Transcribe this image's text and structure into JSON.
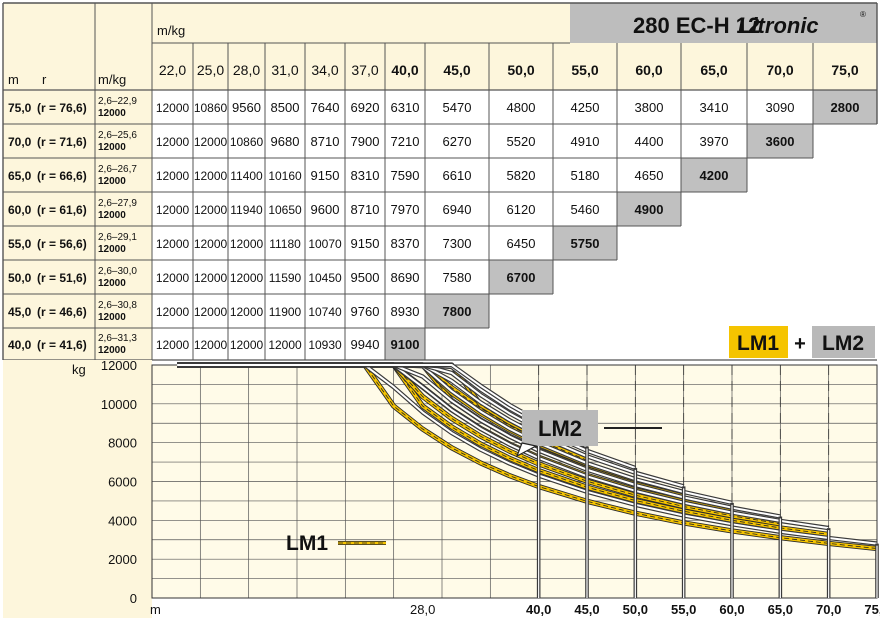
{
  "header": {
    "model": "280 EC-H 12",
    "brand": "Litronic",
    "registered_mark": "®",
    "unit_top": "m/kg",
    "unit_col": "m/kg",
    "label_m": "m",
    "label_r": "r"
  },
  "legend": {
    "lm1": "LM1",
    "plus": "+",
    "lm2": "LM2",
    "lm1_color": "#f5c400",
    "lm2_color": "#b9b9b9",
    "lm2_curve_color": "#3a3a3a"
  },
  "table": {
    "radii": [
      "22,0",
      "25,0",
      "28,0",
      "31,0",
      "34,0",
      "37,0",
      "40,0",
      "45,0",
      "50,0",
      "55,0",
      "60,0",
      "65,0",
      "70,0",
      "75,0"
    ],
    "rows": [
      {
        "jib": "75,0",
        "r": "(r = 76,6)",
        "range": "2,6–22,9",
        "max": "12000",
        "values": [
          "12000",
          "10860",
          "9560",
          "8500",
          "7640",
          "6920",
          "6310",
          "5470",
          "4800",
          "4250",
          "3800",
          "3410",
          "3090",
          "2800"
        ]
      },
      {
        "jib": "70,0",
        "r": "(r = 71,6)",
        "range": "2,6–25,6",
        "max": "12000",
        "values": [
          "12000",
          "12000",
          "10860",
          "9680",
          "8710",
          "7900",
          "7210",
          "6270",
          "5520",
          "4910",
          "4400",
          "3970",
          "3600"
        ]
      },
      {
        "jib": "65,0",
        "r": "(r = 66,6)",
        "range": "2,6–26,7",
        "max": "12000",
        "values": [
          "12000",
          "12000",
          "11400",
          "10160",
          "9150",
          "8310",
          "7590",
          "6610",
          "5820",
          "5180",
          "4650",
          "4200"
        ]
      },
      {
        "jib": "60,0",
        "r": "(r = 61,6)",
        "range": "2,6–27,9",
        "max": "12000",
        "values": [
          "12000",
          "12000",
          "11940",
          "10650",
          "9600",
          "8710",
          "7970",
          "6940",
          "6120",
          "5460",
          "4900"
        ]
      },
      {
        "jib": "55,0",
        "r": "(r = 56,6)",
        "range": "2,6–29,1",
        "max": "12000",
        "values": [
          "12000",
          "12000",
          "12000",
          "11180",
          "10070",
          "9150",
          "8370",
          "7300",
          "6450",
          "5750"
        ]
      },
      {
        "jib": "50,0",
        "r": "(r = 51,6)",
        "range": "2,6–30,0",
        "max": "12000",
        "values": [
          "12000",
          "12000",
          "12000",
          "11590",
          "10450",
          "9500",
          "8690",
          "7580",
          "6700"
        ]
      },
      {
        "jib": "45,0",
        "r": "(r = 46,6)",
        "range": "2,6–30,8",
        "max": "12000",
        "values": [
          "12000",
          "12000",
          "12000",
          "11900",
          "10740",
          "9760",
          "8930",
          "7800"
        ]
      },
      {
        "jib": "40,0",
        "r": "(r = 41,6)",
        "range": "2,6–31,3",
        "max": "12000",
        "values": [
          "12000",
          "12000",
          "12000",
          "12000",
          "10930",
          "9940",
          "9100"
        ]
      }
    ]
  },
  "chart_data": {
    "type": "line",
    "ylabel": "kg",
    "xlabel": "m",
    "ylim": [
      0,
      12000
    ],
    "xlim": [
      0,
      75
    ],
    "yticks": [
      "12000",
      "10000",
      "8000",
      "6000",
      "4000",
      "2000",
      "0"
    ],
    "xticks": [
      "28,0",
      "40,0",
      "45,0",
      "50,0",
      "55,0",
      "60,0",
      "65,0",
      "70,0",
      "75,0"
    ],
    "grid": true,
    "labels": {
      "lm1": "LM1",
      "lm2": "LM2"
    },
    "series_x": [
      2.6,
      22.0,
      25.0,
      28.0,
      31.0,
      34.0,
      37.0,
      40.0,
      45.0,
      50.0,
      55.0,
      60.0,
      65.0,
      70.0,
      75.0
    ],
    "series": [
      {
        "jib": 75,
        "values": [
          12000,
          12000,
          10860,
          9560,
          8500,
          7640,
          6920,
          6310,
          5470,
          4800,
          4250,
          3800,
          3410,
          3090,
          2800
        ]
      },
      {
        "jib": 70,
        "values": [
          12000,
          12000,
          12000,
          10860,
          9680,
          8710,
          7900,
          7210,
          6270,
          5520,
          4910,
          4400,
          3970,
          3600
        ]
      },
      {
        "jib": 65,
        "values": [
          12000,
          12000,
          12000,
          11400,
          10160,
          9150,
          8310,
          7590,
          6610,
          5820,
          5180,
          4650,
          4200
        ]
      },
      {
        "jib": 60,
        "values": [
          12000,
          12000,
          12000,
          11940,
          10650,
          9600,
          8710,
          7970,
          6940,
          6120,
          5460,
          4900
        ]
      },
      {
        "jib": 55,
        "values": [
          12000,
          12000,
          12000,
          12000,
          11180,
          10070,
          9150,
          8370,
          7300,
          6450,
          5750
        ]
      },
      {
        "jib": 50,
        "values": [
          12000,
          12000,
          12000,
          12000,
          11590,
          10450,
          9500,
          8690,
          7580,
          6700
        ]
      },
      {
        "jib": 45,
        "values": [
          12000,
          12000,
          12000,
          12000,
          11900,
          10740,
          9760,
          8930,
          7800
        ]
      },
      {
        "jib": 40,
        "values": [
          12000,
          12000,
          12000,
          12000,
          12000,
          10930,
          9940,
          9100
        ]
      }
    ]
  }
}
